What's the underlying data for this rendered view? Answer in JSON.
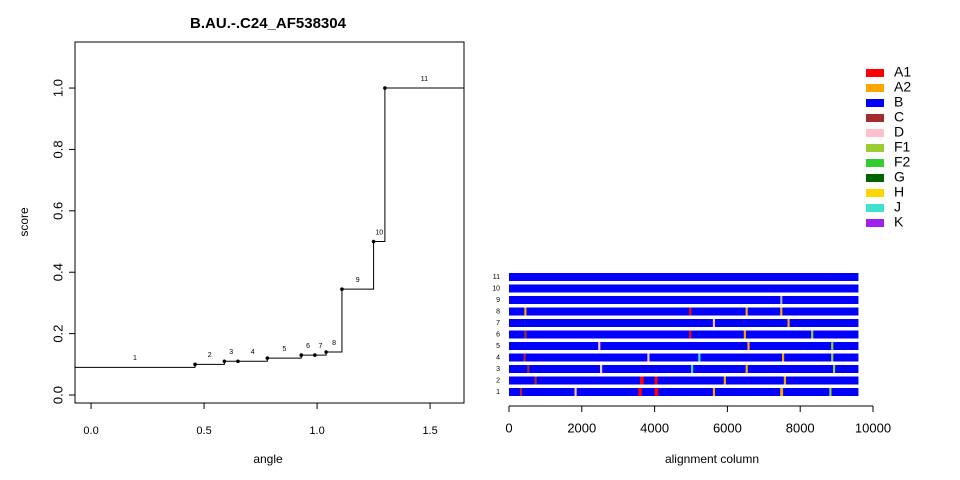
{
  "chart_data": [
    {
      "type": "step",
      "title": "B.AU.-.C24_AF538304",
      "x_label": "angle",
      "y_label": "score",
      "x": [
        0,
        0.46,
        0.59,
        0.65,
        0.78,
        0.93,
        0.99,
        1.04,
        1.11,
        1.25,
        1.3
      ],
      "values": [
        0.09,
        0.1,
        0.11,
        0.11,
        0.12,
        0.13,
        0.13,
        0.14,
        0.345,
        0.5,
        1.0
      ],
      "point_labels": [
        "1",
        "2",
        "3",
        "4",
        "5",
        "6",
        "7",
        "8",
        "9",
        "10",
        "11"
      ],
      "color": "#000000",
      "xlim": [
        -0.071,
        1.65
      ],
      "ylim": [
        -0.026,
        1.15
      ],
      "xticks": [
        {
          "value": 0,
          "label": "0.0"
        },
        0.5,
        {
          "value": 1,
          "label": "1.0"
        },
        1.5
      ],
      "yticks": [
        {
          "value": 0,
          "label": "0.0"
        },
        0.2,
        0.4,
        0.6,
        0.8,
        {
          "value": 1,
          "label": "1.0"
        }
      ]
    },
    {
      "type": "alignment",
      "x_label": "alignment column",
      "xlim": [
        0,
        10000
      ],
      "xticks": [
        0,
        2000,
        4000,
        6000,
        8000,
        10000
      ],
      "base_color": "#0000ff",
      "rows": [
        {
          "label": "1",
          "length": 9600,
          "segments": [
            {
              "start": 300,
              "end": 360,
              "color": "#a52a2a"
            },
            {
              "start": 1800,
              "end": 1860,
              "color": "#ffc0cb"
            },
            {
              "start": 3550,
              "end": 3650,
              "color": "#ff0000"
            },
            {
              "start": 4000,
              "end": 4100,
              "color": "#ff0000"
            },
            {
              "start": 5600,
              "end": 5660,
              "color": "#ffa500"
            },
            {
              "start": 7450,
              "end": 7530,
              "color": "#ffa500"
            },
            {
              "start": 8800,
              "end": 8860,
              "color": "#9acd32"
            }
          ]
        },
        {
          "label": "2",
          "length": 9600,
          "segments": [
            {
              "start": 700,
              "end": 760,
              "color": "#a52a2a"
            },
            {
              "start": 3600,
              "end": 3700,
              "color": "#ff0000"
            },
            {
              "start": 4000,
              "end": 4080,
              "color": "#ff0000"
            },
            {
              "start": 5900,
              "end": 5960,
              "color": "#ffa500"
            },
            {
              "start": 7550,
              "end": 7610,
              "color": "#ffa500"
            }
          ]
        },
        {
          "label": "3",
          "length": 9600,
          "segments": [
            {
              "start": 500,
              "end": 560,
              "color": "#a52a2a"
            },
            {
              "start": 2500,
              "end": 2560,
              "color": "#ffc0cb"
            },
            {
              "start": 5000,
              "end": 5060,
              "color": "#40e0d0"
            },
            {
              "start": 6500,
              "end": 6560,
              "color": "#ffa500"
            },
            {
              "start": 8900,
              "end": 8960,
              "color": "#9acd32"
            }
          ]
        },
        {
          "label": "4",
          "length": 9600,
          "segments": [
            {
              "start": 400,
              "end": 460,
              "color": "#a52a2a"
            },
            {
              "start": 3800,
              "end": 3860,
              "color": "#ffc0cb"
            },
            {
              "start": 5200,
              "end": 5260,
              "color": "#40e0d0"
            },
            {
              "start": 7500,
              "end": 7560,
              "color": "#ffa500"
            },
            {
              "start": 8850,
              "end": 8910,
              "color": "#9acd32"
            }
          ]
        },
        {
          "label": "5",
          "length": 9600,
          "segments": [
            {
              "start": 2450,
              "end": 2510,
              "color": "#ffc0cb"
            },
            {
              "start": 6550,
              "end": 6610,
              "color": "#ffa500"
            },
            {
              "start": 8850,
              "end": 8910,
              "color": "#9acd32"
            }
          ]
        },
        {
          "label": "6",
          "length": 9600,
          "segments": [
            {
              "start": 420,
              "end": 480,
              "color": "#a52a2a"
            },
            {
              "start": 4950,
              "end": 5010,
              "color": "#ff0000"
            },
            {
              "start": 6450,
              "end": 6510,
              "color": "#ffa500"
            },
            {
              "start": 8300,
              "end": 8360,
              "color": "#9acd32"
            }
          ]
        },
        {
          "label": "7",
          "length": 9600,
          "segments": [
            {
              "start": 5600,
              "end": 5660,
              "color": "#ffc0cb"
            },
            {
              "start": 7650,
              "end": 7710,
              "color": "#ffa500"
            }
          ]
        },
        {
          "label": "8",
          "length": 9600,
          "segments": [
            {
              "start": 420,
              "end": 480,
              "color": "#ffa500"
            },
            {
              "start": 4950,
              "end": 5010,
              "color": "#ff0000"
            },
            {
              "start": 6500,
              "end": 6560,
              "color": "#ffa500"
            },
            {
              "start": 7450,
              "end": 7510,
              "color": "#ffa500"
            }
          ]
        },
        {
          "label": "9",
          "length": 9600,
          "segments": [
            {
              "start": 7450,
              "end": 7510,
              "color": "#a9a9a9"
            }
          ]
        },
        {
          "label": "10",
          "length": 9600,
          "segments": []
        },
        {
          "label": "11",
          "length": 9600,
          "segments": []
        }
      ],
      "legend": [
        {
          "name": "A1",
          "color": "#ff0000"
        },
        {
          "name": "A2",
          "color": "#ffa500"
        },
        {
          "name": "B",
          "color": "#0000ff"
        },
        {
          "name": "C",
          "color": "#a52a2a"
        },
        {
          "name": "D",
          "color": "#ffc0cb"
        },
        {
          "name": "F1",
          "color": "#9acd32"
        },
        {
          "name": "F2",
          "color": "#32cd32"
        },
        {
          "name": "G",
          "color": "#006400"
        },
        {
          "name": "H",
          "color": "#ffd700"
        },
        {
          "name": "J",
          "color": "#40e0d0"
        },
        {
          "name": "K",
          "color": "#a020f0"
        }
      ]
    }
  ]
}
